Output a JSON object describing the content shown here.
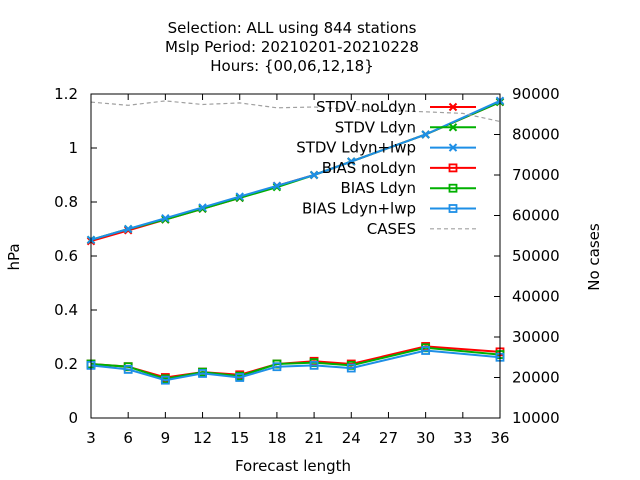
{
  "chart_data": {
    "type": "line",
    "title_lines": [
      "Selection: ALL using   844 stations",
      "Mslp   Period: 20210201-20210228",
      "Hours: {00,06,12,18}"
    ],
    "xlabel": "Forecast length",
    "ylabel": "hPa",
    "y2label": "No cases",
    "x": [
      3,
      6,
      9,
      12,
      15,
      18,
      21,
      24,
      27,
      30,
      33,
      36
    ],
    "xticks": [
      "3",
      "6",
      "9",
      "12",
      "15",
      "18",
      "21",
      "24",
      "27",
      "30",
      "33",
      "36"
    ],
    "xlim": [
      3,
      36
    ],
    "ylim": [
      0,
      1.2
    ],
    "yticks": [
      "0",
      "0.2",
      "0.4",
      "0.6",
      "0.8",
      "1",
      "1.2"
    ],
    "y2lim": [
      10000,
      90000
    ],
    "y2ticks": [
      "10000",
      "20000",
      "30000",
      "40000",
      "50000",
      "60000",
      "70000",
      "80000",
      "90000"
    ],
    "legend_position": "top-right",
    "series": [
      {
        "name": "STDV noLdyn",
        "color": "#ff0000",
        "marker": "x",
        "axis": "y1",
        "x": [
          3,
          6,
          9,
          12,
          15,
          18,
          21,
          24,
          30,
          36
        ],
        "values": [
          0.655,
          0.695,
          0.735,
          0.775,
          0.815,
          0.86,
          0.9,
          0.95,
          1.05,
          1.17
        ]
      },
      {
        "name": "STDV Ldyn",
        "color": "#00b000",
        "marker": "x",
        "axis": "y1",
        "x": [
          3,
          6,
          9,
          12,
          15,
          18,
          21,
          24,
          30,
          36
        ],
        "values": [
          0.66,
          0.7,
          0.735,
          0.775,
          0.815,
          0.855,
          0.9,
          0.95,
          1.05,
          1.17
        ]
      },
      {
        "name": "STDV Ldyn+lwp",
        "color": "#1e8fe6",
        "marker": "x",
        "axis": "y1",
        "x": [
          3,
          6,
          9,
          12,
          15,
          18,
          21,
          24,
          30,
          36
        ],
        "values": [
          0.66,
          0.7,
          0.74,
          0.78,
          0.82,
          0.86,
          0.9,
          0.95,
          1.05,
          1.175
        ]
      },
      {
        "name": "BIAS noLdyn",
        "color": "#ff0000",
        "marker": "square",
        "axis": "y1",
        "x": [
          3,
          6,
          9,
          12,
          15,
          18,
          21,
          24,
          30,
          36
        ],
        "values": [
          0.2,
          0.19,
          0.15,
          0.17,
          0.16,
          0.2,
          0.21,
          0.2,
          0.265,
          0.245
        ]
      },
      {
        "name": "BIAS Ldyn",
        "color": "#00b000",
        "marker": "square",
        "axis": "y1",
        "x": [
          3,
          6,
          9,
          12,
          15,
          18,
          21,
          24,
          30,
          36
        ],
        "values": [
          0.2,
          0.19,
          0.145,
          0.17,
          0.155,
          0.2,
          0.205,
          0.195,
          0.26,
          0.235
        ]
      },
      {
        "name": "BIAS Ldyn+lwp",
        "color": "#1e8fe6",
        "marker": "square",
        "axis": "y1",
        "x": [
          3,
          6,
          9,
          12,
          15,
          18,
          21,
          24,
          30,
          36
        ],
        "values": [
          0.195,
          0.18,
          0.14,
          0.165,
          0.15,
          0.19,
          0.195,
          0.185,
          0.25,
          0.225
        ]
      },
      {
        "name": "CASES",
        "color": "#a0a0a0",
        "marker": "none",
        "dashed": true,
        "axis": "y2",
        "x": [
          3,
          6,
          9,
          12,
          15,
          18,
          21,
          24,
          30,
          33,
          36
        ],
        "values": [
          88000,
          87200,
          88300,
          87400,
          87800,
          86600,
          86800,
          86200,
          85600,
          85200,
          83200
        ]
      }
    ]
  }
}
